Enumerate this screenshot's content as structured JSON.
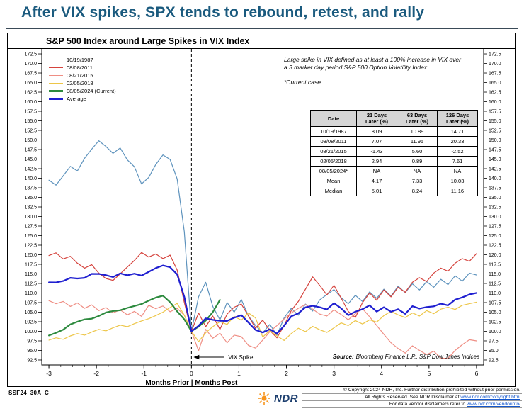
{
  "header": {
    "title": "After VIX spikes, SPX tends to rebound, retest, and rally",
    "title_color": "#1a5a7e"
  },
  "chart_data": {
    "type": "line",
    "title": "S&P 500 Index around Large Spikes in VIX Index",
    "xlabel": "Months Prior | Months Post",
    "ylabel": "",
    "xlim": [
      -3.15,
      6.15
    ],
    "ylim": [
      92.5,
      172.5
    ],
    "y_tick_step": 2.5,
    "x_ticks": [
      -3,
      -2,
      -1,
      0,
      1,
      2,
      3,
      4,
      5,
      6
    ],
    "x_start": -3,
    "x_step": 0.15,
    "spike_x": 0,
    "spike_label": "VIX Spike",
    "grid": false,
    "legend_position": "top-left",
    "annotations": {
      "definition_lines": [
        "Large spike in VIX defined as at least a 100% increase in VIX over",
        "a 3 market day period S&P 500 Option Volatility Index"
      ],
      "current_case": "*Current case"
    },
    "source": {
      "label": "Source:",
      "text": "Bloomberg Finance L.P., S&P Dow Jones Indices"
    },
    "series": [
      {
        "id": "1987",
        "label": "10/19/1987",
        "color": "#5e93bd",
        "bold": false,
        "values": [
          139.5,
          138.2,
          140.6,
          143.1,
          141.9,
          145.2,
          147.6,
          149.8,
          148.3,
          146.5,
          147.9,
          144.8,
          143.0,
          138.5,
          140.2,
          143.6,
          146.1,
          144.9,
          139.8,
          126.0,
          100.0,
          109.0,
          112.8,
          106.5,
          103.0,
          107.5,
          105.0,
          108.3,
          104.0,
          101.5,
          99.6,
          101.8,
          99.0,
          103.5,
          106.0,
          104.2,
          107.1,
          105.3,
          108.2,
          109.6,
          110.9,
          108.8,
          107.2,
          109.4,
          107.8,
          110.3,
          108.6,
          111.0,
          109.2,
          111.8,
          110.1,
          112.4,
          110.8,
          113.0,
          111.5,
          113.6,
          112.2,
          114.5,
          113.1,
          115.2,
          114.7
        ]
      },
      {
        "id": "2011",
        "label": "08/08/2011",
        "color": "#d5433d",
        "bold": false,
        "values": [
          119.8,
          120.5,
          118.9,
          119.6,
          117.8,
          116.5,
          117.4,
          115.2,
          113.8,
          113.3,
          115.0,
          116.8,
          118.5,
          120.6,
          119.4,
          120.2,
          119.0,
          119.9,
          116.0,
          107.5,
          100.0,
          104.8,
          101.2,
          104.0,
          100.5,
          104.5,
          106.3,
          107.1,
          104.0,
          100.8,
          102.9,
          100.2,
          98.3,
          101.5,
          105.4,
          107.8,
          111.0,
          114.2,
          112.0,
          109.5,
          112.0,
          108.7,
          105.2,
          103.6,
          107.5,
          110.0,
          108.1,
          110.8,
          109.0,
          111.5,
          110.2,
          112.8,
          114.0,
          113.0,
          115.2,
          116.5,
          115.7,
          117.8,
          119.0,
          118.3,
          120.3
        ]
      },
      {
        "id": "2015",
        "label": "08/21/2015",
        "color": "#ef8e84",
        "bold": false,
        "values": [
          108.0,
          107.2,
          107.8,
          106.5,
          107.4,
          106.0,
          106.9,
          105.4,
          106.2,
          104.8,
          105.6,
          104.3,
          105.2,
          103.9,
          106.8,
          105.9,
          106.6,
          105.1,
          106.0,
          104.2,
          100.0,
          94.9,
          100.5,
          98.2,
          99.5,
          97.0,
          99.0,
          98.6,
          96.3,
          95.6,
          97.7,
          99.9,
          101.5,
          103.2,
          104.8,
          106.0,
          107.0,
          105.8,
          104.5,
          104.0,
          105.6,
          104.4,
          103.0,
          104.6,
          105.9,
          103.8,
          101.5,
          99.2,
          97.0,
          95.5,
          94.3,
          96.2,
          95.0,
          93.9,
          94.8,
          93.0,
          92.9,
          95.0,
          96.5,
          97.8,
          97.5
        ]
      },
      {
        "id": "2018",
        "label": "02/05/2018",
        "color": "#edc649",
        "bold": false,
        "values": [
          97.7,
          98.3,
          97.9,
          98.8,
          99.4,
          99.0,
          99.8,
          100.5,
          100.1,
          100.9,
          101.6,
          101.2,
          102.0,
          102.7,
          103.3,
          104.1,
          105.0,
          106.2,
          107.3,
          104.2,
          100.0,
          97.3,
          99.6,
          101.2,
          102.5,
          101.8,
          103.9,
          102.9,
          104.8,
          103.5,
          98.5,
          100.2,
          98.8,
          97.6,
          99.4,
          100.8,
          99.9,
          101.3,
          100.4,
          99.7,
          100.9,
          102.2,
          101.5,
          102.8,
          101.9,
          103.0,
          102.4,
          104.1,
          105.2,
          104.3,
          103.6,
          104.8,
          104.0,
          105.4,
          104.6,
          105.8,
          106.3,
          105.7,
          106.8,
          107.2,
          107.6
        ]
      },
      {
        "id": "2024",
        "label": "08/05/2024 (Current)",
        "color": "#2d8a3e",
        "bold": true,
        "values": [
          98.9,
          99.6,
          100.4,
          101.8,
          102.5,
          103.1,
          103.3,
          104.0,
          104.9,
          105.3,
          105.5,
          106.1,
          106.6,
          107.1,
          108.0,
          108.8,
          109.3,
          107.6,
          105.2,
          103.1,
          100.0,
          101.2,
          102.8,
          105.0,
          108.2
        ]
      },
      {
        "id": "average",
        "label": "Average",
        "color": "#1f1fd0",
        "bold": true,
        "computed": true
      }
    ]
  },
  "table": {
    "col_headers": [
      [
        "Date",
        ""
      ],
      [
        "21 Days",
        "Later (%)"
      ],
      [
        "63 Days",
        "Later (%)"
      ],
      [
        "126 Days",
        "Later (%)"
      ]
    ],
    "rows": [
      [
        "10/19/1987",
        "8.09",
        "10.89",
        "14.71"
      ],
      [
        "08/08/2011",
        "7.07",
        "11.95",
        "20.33"
      ],
      [
        "08/21/2015",
        "-1.43",
        "5.60",
        "-2.52"
      ],
      [
        "02/05/2018",
        "2.94",
        "0.89",
        "7.61"
      ],
      [
        "08/05/2024*",
        "NA",
        "NA",
        "NA"
      ],
      [
        "Mean",
        "4.17",
        "7.33",
        "10.03"
      ],
      [
        "Median",
        "5.01",
        "8.24",
        "11.16"
      ]
    ]
  },
  "footer": {
    "doc_id": "SSF24_30A_C",
    "logo_text": "NDR",
    "logo_orange": "#f7941d",
    "link_color": "#1155cc",
    "copyright_rows": [
      {
        "text": "© Copyright 2024 NDR, Inc. Further distribution prohibited without prior permission.",
        "link": ""
      },
      {
        "text": "All Rights Reserved. See NDR Disclaimer at ",
        "link": "www.ndr.com/copyright.html"
      },
      {
        "text": "For data vendor disclaimers refer to ",
        "link": "www.ndr.com/vendorinfo/"
      }
    ]
  }
}
